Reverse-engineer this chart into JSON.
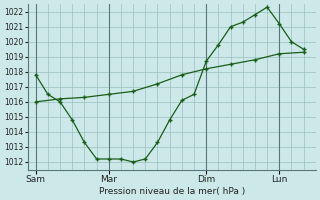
{
  "background_color": "#cce8e8",
  "grid_color": "#9bbfbf",
  "line_color": "#1a5c1a",
  "xlabel": "Pression niveau de la mer( hPa )",
  "ylim": [
    1011.5,
    1022.5
  ],
  "yticks": [
    1012,
    1013,
    1014,
    1015,
    1016,
    1017,
    1018,
    1019,
    1020,
    1021,
    1022
  ],
  "xtick_labels": [
    "Sam",
    "Mar",
    "Dim",
    "Lun"
  ],
  "xtick_positions": [
    0,
    36,
    84,
    120
  ],
  "total_points": 144,
  "series1_x": [
    0,
    6,
    12,
    18,
    24,
    30,
    36,
    42,
    48,
    54,
    60,
    66,
    72,
    78,
    84,
    90,
    96,
    102,
    108,
    114,
    120,
    126,
    132
  ],
  "series1_y": [
    1017.8,
    1016.5,
    1016.0,
    1014.8,
    1013.3,
    1012.2,
    1012.2,
    1012.2,
    1012.0,
    1012.2,
    1013.3,
    1014.8,
    1016.1,
    1016.5,
    1018.7,
    1019.8,
    1021.0,
    1021.3,
    1021.8,
    1022.3,
    1021.2,
    1020.0,
    1019.5
  ],
  "series2_x": [
    0,
    12,
    24,
    36,
    48,
    60,
    72,
    84,
    96,
    108,
    120,
    132
  ],
  "series2_y": [
    1016.0,
    1016.2,
    1016.3,
    1016.5,
    1016.7,
    1017.2,
    1017.8,
    1018.2,
    1018.5,
    1018.8,
    1019.2,
    1019.3
  ],
  "figsize": [
    3.2,
    2.0
  ],
  "dpi": 100
}
